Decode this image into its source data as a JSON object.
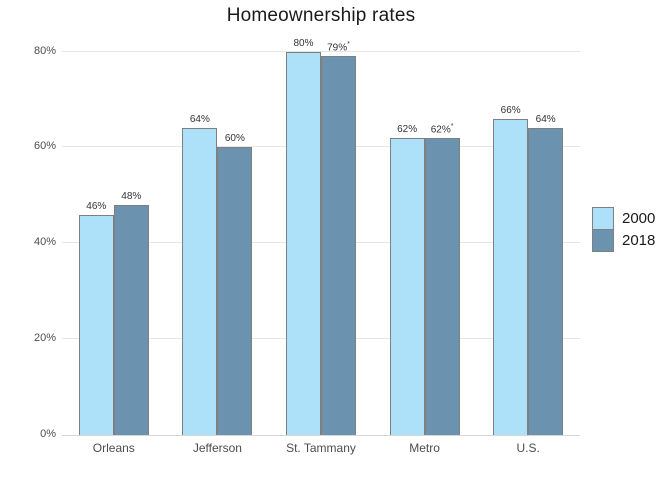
{
  "title": "Homeownership rates",
  "colors": {
    "series_2000": "#ADE1FA",
    "series_2018": "#6B92AE",
    "bar_border": "#7F7F7F",
    "gridline": "#E6E6E6",
    "axis_line": "#D6D6D6",
    "title_text": "#1A1A1A",
    "value_label_text": "#333333",
    "axis_label_text": "#4D4D4D"
  },
  "legend": {
    "position": "right",
    "items": [
      {
        "label": "2000",
        "color": "#ADE1FA"
      },
      {
        "label": "2018",
        "color": "#6B92AE"
      }
    ]
  },
  "chart_data": {
    "type": "bar",
    "title": "Homeownership rates",
    "categories": [
      "Orleans",
      "Jefferson",
      "St. Tammany",
      "Metro",
      "U.S."
    ],
    "series": [
      {
        "name": "2000",
        "color": "#ADE1FA",
        "values": [
          46,
          64,
          80,
          62,
          66
        ],
        "labels": [
          "46%",
          "64%",
          "80%",
          "62%",
          "66%"
        ]
      },
      {
        "name": "2018",
        "color": "#6B92AE",
        "values": [
          48,
          60,
          79,
          62,
          64
        ],
        "labels": [
          "48%",
          "60%",
          "79%*",
          "62%*",
          "64%"
        ]
      }
    ],
    "xlabel": "",
    "ylabel": "",
    "ylim": [
      0,
      82
    ],
    "yticks": [
      0,
      20,
      40,
      60,
      80
    ],
    "ytick_labels": [
      "0%",
      "20%",
      "40%",
      "60%",
      "80%"
    ],
    "grid": true,
    "legend_position": "right"
  }
}
